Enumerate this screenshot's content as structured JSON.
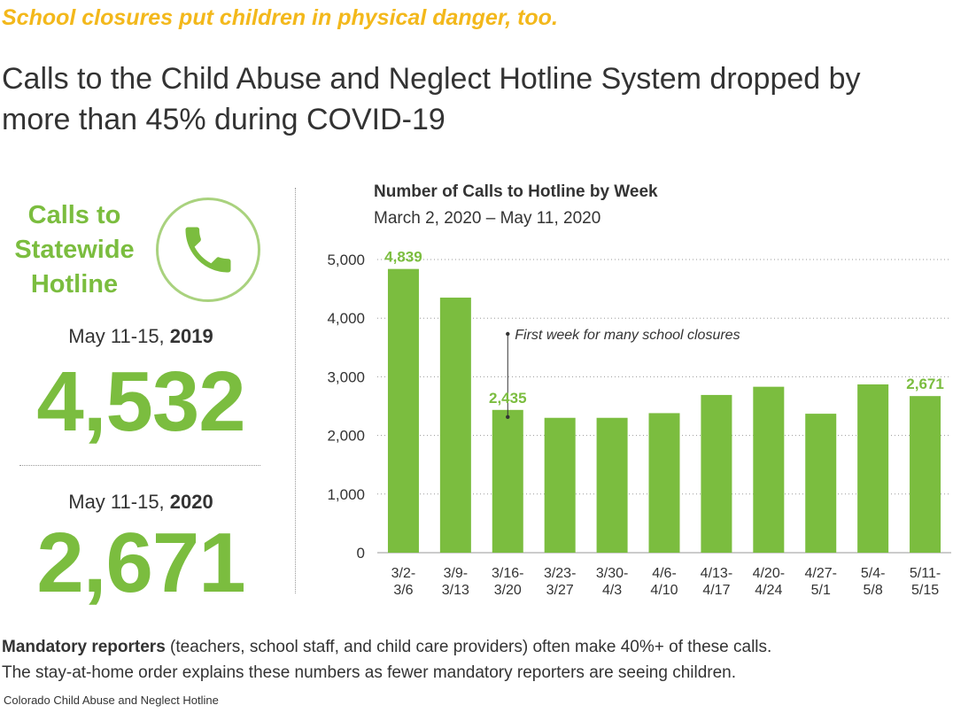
{
  "kicker": "School closures put children in physical danger, too.",
  "headline": "Calls to the Child Abuse and Neglect Hotline System dropped by more than 45% during COVID-19",
  "left_panel": {
    "title_lines": [
      "Calls to",
      "Statewide",
      "Hotline"
    ],
    "icon": "phone-icon",
    "comparisons": [
      {
        "period": "May 11-15, ",
        "year": "2019",
        "value": "4,532"
      },
      {
        "period": "May 11-15, ",
        "year": "2020",
        "value": "2,671"
      }
    ]
  },
  "chart_data": {
    "type": "bar",
    "title": "Number of Calls to Hotline by Week",
    "subtitle": "March 2, 2020 – May 11, 2020",
    "xlabel": "",
    "ylabel": "",
    "categories": [
      [
        "3/2-",
        "3/6"
      ],
      [
        "3/9-",
        "3/13"
      ],
      [
        "3/16-",
        "3/20"
      ],
      [
        "3/23-",
        "3/27"
      ],
      [
        "3/30-",
        "4/3"
      ],
      [
        "4/6-",
        "4/10"
      ],
      [
        "4/13-",
        "4/17"
      ],
      [
        "4/20-",
        "4/24"
      ],
      [
        "4/27-",
        "5/1"
      ],
      [
        "5/4-",
        "5/8"
      ],
      [
        "5/11-",
        "5/15"
      ]
    ],
    "values": [
      4839,
      4350,
      2435,
      2300,
      2300,
      2380,
      2690,
      2830,
      2370,
      2870,
      2671
    ],
    "data_labels": [
      {
        "index": 0,
        "text": "4,839"
      },
      {
        "index": 2,
        "text": "2,435"
      },
      {
        "index": 10,
        "text": "2,671"
      }
    ],
    "yticks": [
      0,
      1000,
      2000,
      3000,
      4000,
      5000
    ],
    "ytick_labels": [
      "0",
      "1,000",
      "2,000",
      "3,000",
      "4,000",
      "5,000"
    ],
    "ylim": [
      0,
      5000
    ],
    "grid": "dotted horizontal",
    "bar_color": "#7bbd3f",
    "label_color": "#7bbd3f",
    "annotation": {
      "index": 2,
      "text": "First week for many school closures"
    }
  },
  "footnote": {
    "bold": "Mandatory reporters",
    "line1_rest": " (teachers, school staff, and child care providers) often make 40%+ of these calls.",
    "line2": "The stay-at-home order explains these numbers as fewer mandatory reporters are seeing children."
  },
  "source": "Colorado Child Abuse and Neglect Hotline",
  "colors": {
    "accent_green": "#7bbd3f",
    "kicker_yellow": "#f3b81b",
    "text": "#333333"
  }
}
